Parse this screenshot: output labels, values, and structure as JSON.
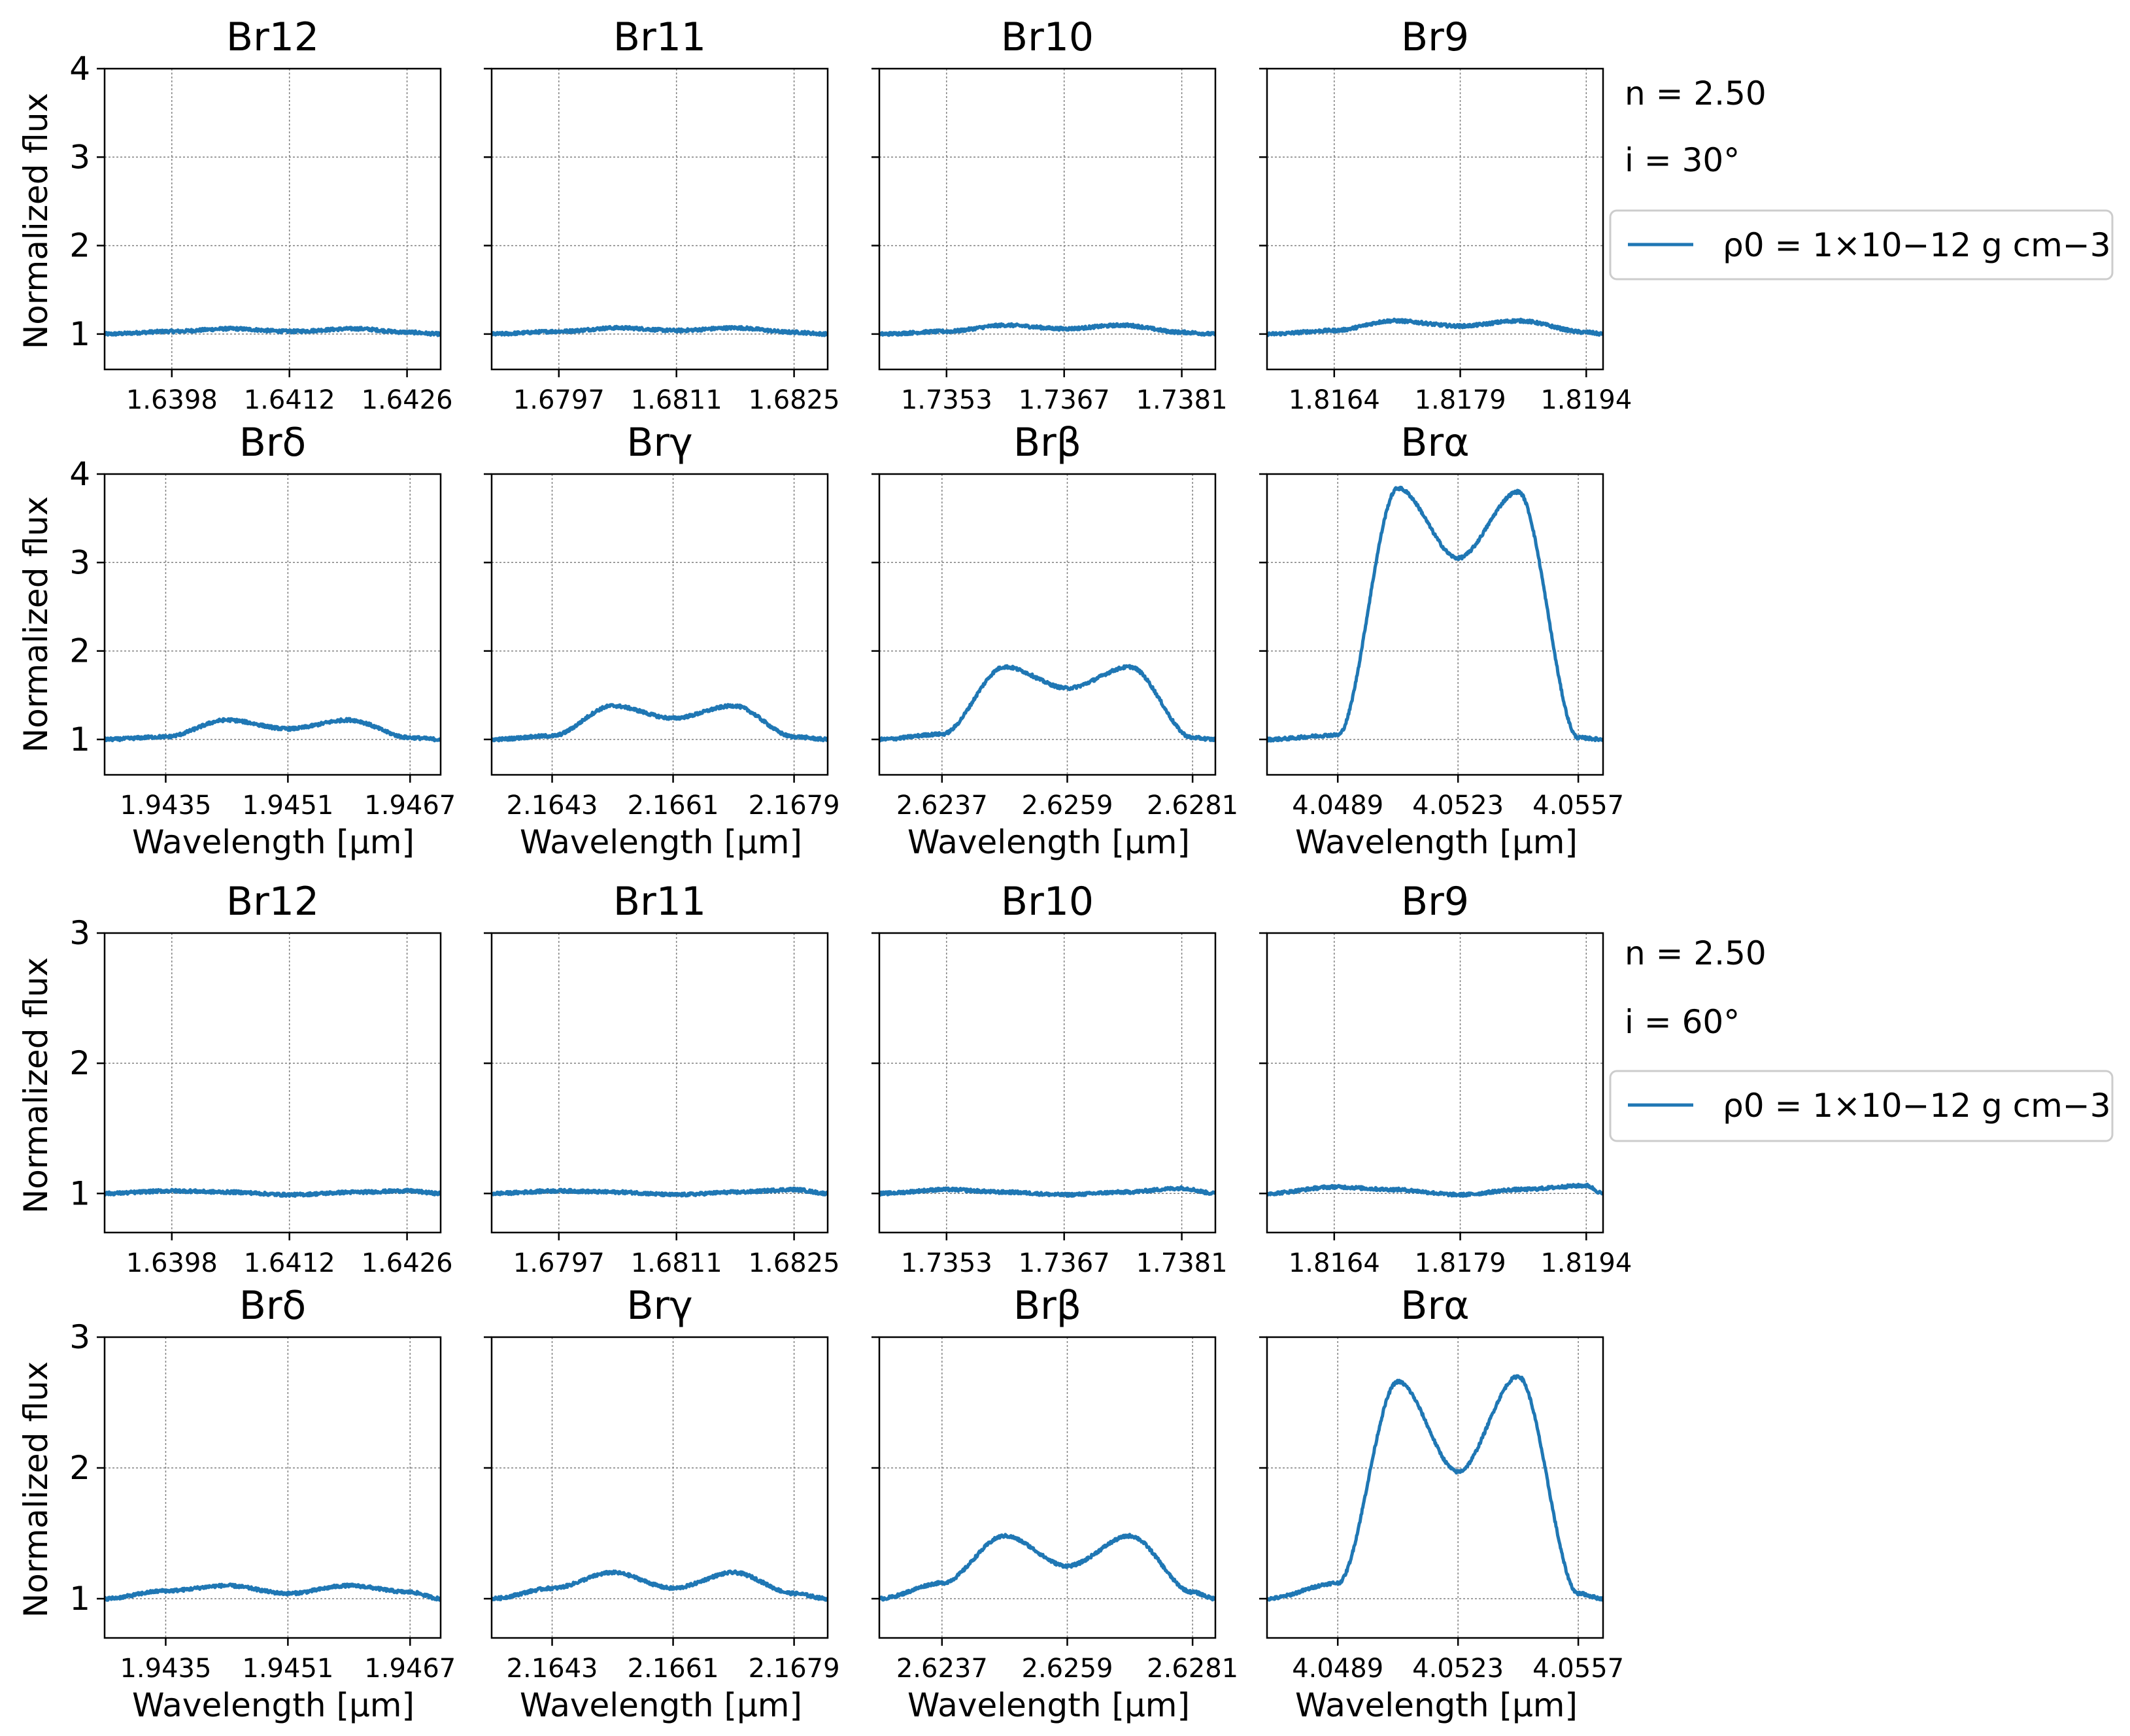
{
  "figure": {
    "ylabel": "Normalized flux",
    "xlabel": "Wavelength [μm]",
    "line_color": "#1f77b4",
    "grid": true
  },
  "blocks": [
    {
      "annot_n": "n = 2.50",
      "annot_i": "i = 30°",
      "legend_label": "ρ0 = 1×10−12 g cm−3",
      "yticks": [
        "1",
        "2",
        "3",
        "4"
      ]
    },
    {
      "annot_n": "n = 2.50",
      "annot_i": "i = 60°",
      "legend_label": "ρ0 = 1×10−12 g cm−3",
      "yticks": [
        "1",
        "2",
        "3"
      ]
    }
  ],
  "chart_data": [
    {
      "type": "line",
      "title": "Br12",
      "x_ticks": [
        "1.6398",
        "1.6412",
        "1.6426"
      ],
      "x_tick_values": [
        1.6398,
        1.6412,
        1.6426
      ],
      "xlim": [
        1.639,
        1.643
      ],
      "ylim": [
        0.6,
        4.0
      ],
      "series": [
        {
          "name": "ρ0 = 1×10−12 g cm−3",
          "x": [
            1.639,
            1.6398,
            1.6405,
            1.6412,
            1.642,
            1.6426,
            1.643
          ],
          "y": [
            1.0,
            1.03,
            1.06,
            1.03,
            1.06,
            1.02,
            1.0
          ]
        }
      ]
    },
    {
      "type": "line",
      "title": "Br11",
      "x_ticks": [
        "1.6797",
        "1.6811",
        "1.6825"
      ],
      "x_tick_values": [
        1.6797,
        1.6811,
        1.6825
      ],
      "xlim": [
        1.6789,
        1.6829
      ],
      "ylim": [
        0.6,
        4.0
      ],
      "series": [
        {
          "name": "ρ0 = 1×10−12 g cm−3",
          "x": [
            1.6789,
            1.6797,
            1.6804,
            1.6811,
            1.6818,
            1.6825,
            1.6829
          ],
          "y": [
            1.0,
            1.03,
            1.07,
            1.04,
            1.07,
            1.02,
            1.0
          ]
        }
      ]
    },
    {
      "type": "line",
      "title": "Br10",
      "x_ticks": [
        "1.7353",
        "1.7367",
        "1.7381"
      ],
      "x_tick_values": [
        1.7353,
        1.7367,
        1.7381
      ],
      "xlim": [
        1.7345,
        1.7385
      ],
      "ylim": [
        0.6,
        4.0
      ],
      "series": [
        {
          "name": "ρ0 = 1×10−12 g cm−3",
          "x": [
            1.7345,
            1.7353,
            1.736,
            1.7367,
            1.7374,
            1.7381,
            1.7385
          ],
          "y": [
            1.0,
            1.03,
            1.1,
            1.06,
            1.1,
            1.02,
            1.0
          ]
        }
      ]
    },
    {
      "type": "line",
      "title": "Br9",
      "x_ticks": [
        "1.8164",
        "1.8179",
        "1.8194"
      ],
      "x_tick_values": [
        1.8164,
        1.8179,
        1.8194
      ],
      "xlim": [
        1.8156,
        1.8196
      ],
      "ylim": [
        0.6,
        4.0
      ],
      "series": [
        {
          "name": "ρ0 = 1×10−12 g cm−3",
          "x": [
            1.8156,
            1.8164,
            1.8171,
            1.8179,
            1.8186,
            1.8194,
            1.8196
          ],
          "y": [
            1.0,
            1.04,
            1.15,
            1.09,
            1.15,
            1.02,
            1.0
          ]
        }
      ]
    },
    {
      "type": "line",
      "title": "Brδ",
      "x_ticks": [
        "1.9435",
        "1.9451",
        "1.9467"
      ],
      "x_tick_values": [
        1.9435,
        1.9451,
        1.9467
      ],
      "xlim": [
        1.9427,
        1.9471
      ],
      "ylim": [
        0.6,
        4.0
      ],
      "series": [
        {
          "name": "ρ0 = 1×10−12 g cm−3",
          "x": [
            1.9427,
            1.9435,
            1.9443,
            1.9451,
            1.9459,
            1.9467,
            1.9471
          ],
          "y": [
            1.0,
            1.03,
            1.22,
            1.12,
            1.22,
            1.02,
            1.0
          ]
        }
      ]
    },
    {
      "type": "line",
      "title": "Brγ",
      "x_ticks": [
        "2.1643",
        "2.1661",
        "2.1679"
      ],
      "x_tick_values": [
        2.1643,
        2.1661,
        2.1679
      ],
      "xlim": [
        2.1634,
        2.1684
      ],
      "ylim": [
        0.6,
        4.0
      ],
      "series": [
        {
          "name": "ρ0 = 1×10−12 g cm−3",
          "x": [
            2.1634,
            2.1643,
            2.1652,
            2.1661,
            2.167,
            2.1679,
            2.1684
          ],
          "y": [
            1.0,
            1.04,
            1.38,
            1.24,
            1.38,
            1.03,
            1.0
          ]
        }
      ]
    },
    {
      "type": "line",
      "title": "Brβ",
      "x_ticks": [
        "2.6237",
        "2.6259",
        "2.6281"
      ],
      "x_tick_values": [
        2.6237,
        2.6259,
        2.6281
      ],
      "xlim": [
        2.6226,
        2.6285
      ],
      "ylim": [
        0.6,
        4.0
      ],
      "series": [
        {
          "name": "ρ0 = 1×10−12 g cm−3",
          "x": [
            2.6226,
            2.6237,
            2.6248,
            2.6259,
            2.627,
            2.6281,
            2.6285
          ],
          "y": [
            1.0,
            1.06,
            1.82,
            1.58,
            1.82,
            1.02,
            1.0
          ]
        }
      ]
    },
    {
      "type": "line",
      "title": "Brα",
      "x_ticks": [
        "4.0489",
        "4.0523",
        "4.0557"
      ],
      "x_tick_values": [
        4.0489,
        4.0523,
        4.0557
      ],
      "xlim": [
        4.0469,
        4.0564
      ],
      "ylim": [
        0.6,
        4.0
      ],
      "series": [
        {
          "name": "ρ0 = 1×10−12 g cm−3",
          "x": [
            4.0469,
            4.0489,
            4.0506,
            4.0523,
            4.054,
            4.0557,
            4.0564
          ],
          "y": [
            1.0,
            1.05,
            3.84,
            3.05,
            3.8,
            1.02,
            1.0
          ]
        }
      ]
    },
    {
      "type": "line",
      "title": "Br12",
      "x_ticks": [
        "1.6398",
        "1.6412",
        "1.6426"
      ],
      "x_tick_values": [
        1.6398,
        1.6412,
        1.6426
      ],
      "xlim": [
        1.639,
        1.643
      ],
      "ylim": [
        0.7,
        3.0
      ],
      "series": [
        {
          "name": "ρ0 = 1×10−12 g cm−3",
          "x": [
            1.639,
            1.6398,
            1.6405,
            1.6412,
            1.642,
            1.6426,
            1.643
          ],
          "y": [
            1.0,
            1.02,
            1.01,
            0.99,
            1.01,
            1.02,
            1.0
          ]
        }
      ]
    },
    {
      "type": "line",
      "title": "Br11",
      "x_ticks": [
        "1.6797",
        "1.6811",
        "1.6825"
      ],
      "x_tick_values": [
        1.6797,
        1.6811,
        1.6825
      ],
      "xlim": [
        1.6789,
        1.6829
      ],
      "ylim": [
        0.7,
        3.0
      ],
      "series": [
        {
          "name": "ρ0 = 1×10−12 g cm−3",
          "x": [
            1.6789,
            1.6797,
            1.6804,
            1.6811,
            1.6818,
            1.6825,
            1.6829
          ],
          "y": [
            1.0,
            1.02,
            1.01,
            0.99,
            1.01,
            1.03,
            1.0
          ]
        }
      ]
    },
    {
      "type": "line",
      "title": "Br10",
      "x_ticks": [
        "1.7353",
        "1.7367",
        "1.7381"
      ],
      "x_tick_values": [
        1.7353,
        1.7367,
        1.7381
      ],
      "xlim": [
        1.7345,
        1.7385
      ],
      "ylim": [
        0.7,
        3.0
      ],
      "series": [
        {
          "name": "ρ0 = 1×10−12 g cm−3",
          "x": [
            1.7345,
            1.7353,
            1.736,
            1.7367,
            1.7374,
            1.7381,
            1.7385
          ],
          "y": [
            1.0,
            1.03,
            1.01,
            0.99,
            1.01,
            1.04,
            1.0
          ]
        }
      ]
    },
    {
      "type": "line",
      "title": "Br9",
      "x_ticks": [
        "1.8164",
        "1.8179",
        "1.8194"
      ],
      "x_tick_values": [
        1.8164,
        1.8179,
        1.8194
      ],
      "xlim": [
        1.8156,
        1.8196
      ],
      "ylim": [
        0.7,
        3.0
      ],
      "series": [
        {
          "name": "ρ0 = 1×10−12 g cm−3",
          "x": [
            1.8156,
            1.8164,
            1.8171,
            1.8179,
            1.8186,
            1.8194,
            1.8196
          ],
          "y": [
            1.0,
            1.05,
            1.03,
            0.99,
            1.03,
            1.06,
            1.0
          ]
        }
      ]
    },
    {
      "type": "line",
      "title": "Brδ",
      "x_ticks": [
        "1.9435",
        "1.9451",
        "1.9467"
      ],
      "x_tick_values": [
        1.9435,
        1.9451,
        1.9467
      ],
      "xlim": [
        1.9427,
        1.9471
      ],
      "ylim": [
        0.7,
        3.0
      ],
      "series": [
        {
          "name": "ρ0 = 1×10−12 g cm−3",
          "x": [
            1.9427,
            1.9435,
            1.9443,
            1.9451,
            1.9459,
            1.9467,
            1.9471
          ],
          "y": [
            1.0,
            1.06,
            1.1,
            1.04,
            1.1,
            1.05,
            1.0
          ]
        }
      ]
    },
    {
      "type": "line",
      "title": "Brγ",
      "x_ticks": [
        "2.1643",
        "2.1661",
        "2.1679"
      ],
      "x_tick_values": [
        2.1643,
        2.1661,
        2.1679
      ],
      "xlim": [
        2.1634,
        2.1684
      ],
      "ylim": [
        0.7,
        3.0
      ],
      "series": [
        {
          "name": "ρ0 = 1×10−12 g cm−3",
          "x": [
            2.1634,
            2.1643,
            2.1652,
            2.1661,
            2.167,
            2.1679,
            2.1684
          ],
          "y": [
            1.0,
            1.08,
            1.2,
            1.08,
            1.2,
            1.04,
            1.0
          ]
        }
      ]
    },
    {
      "type": "line",
      "title": "Brβ",
      "x_ticks": [
        "2.6237",
        "2.6259",
        "2.6281"
      ],
      "x_tick_values": [
        2.6237,
        2.6259,
        2.6281
      ],
      "xlim": [
        2.6226,
        2.6285
      ],
      "ylim": [
        0.7,
        3.0
      ],
      "series": [
        {
          "name": "ρ0 = 1×10−12 g cm−3",
          "x": [
            2.6226,
            2.6237,
            2.6248,
            2.6259,
            2.627,
            2.6281,
            2.6285
          ],
          "y": [
            1.0,
            1.12,
            1.48,
            1.25,
            1.48,
            1.05,
            1.0
          ]
        }
      ]
    },
    {
      "type": "line",
      "title": "Brα",
      "x_ticks": [
        "4.0489",
        "4.0523",
        "4.0557"
      ],
      "x_tick_values": [
        4.0489,
        4.0523,
        4.0557
      ],
      "xlim": [
        4.0469,
        4.0564
      ],
      "ylim": [
        0.7,
        3.0
      ],
      "series": [
        {
          "name": "ρ0 = 1×10−12 g cm−3",
          "x": [
            4.0469,
            4.0489,
            4.0506,
            4.0523,
            4.054,
            4.0557,
            4.0564
          ],
          "y": [
            1.0,
            1.12,
            2.66,
            1.97,
            2.7,
            1.04,
            1.0
          ]
        }
      ]
    }
  ]
}
